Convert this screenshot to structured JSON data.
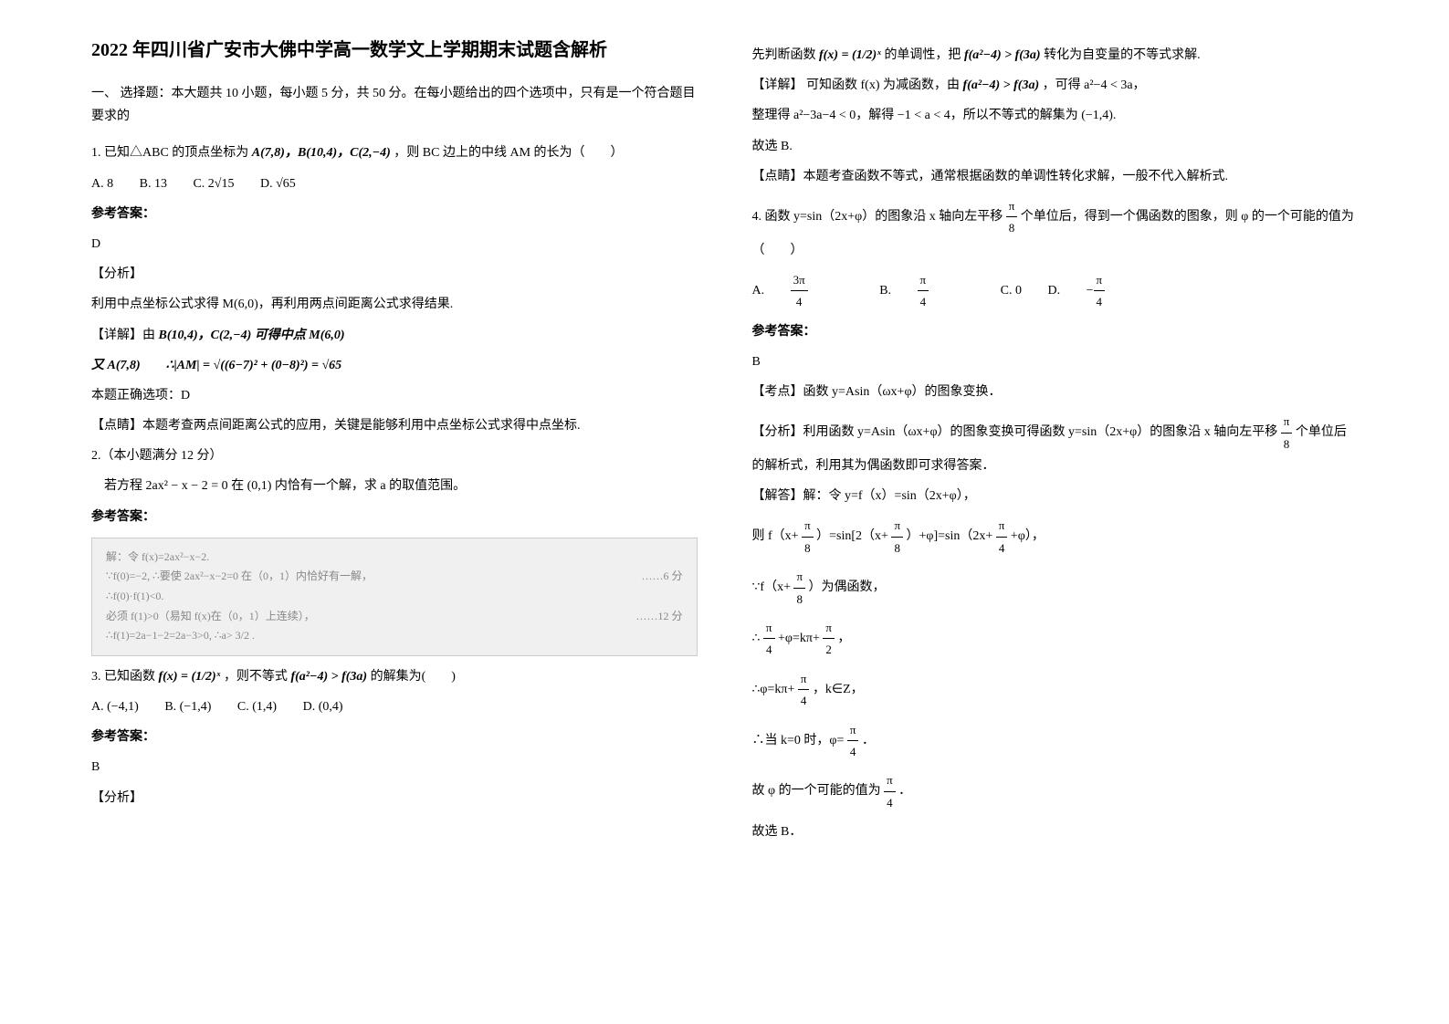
{
  "title": "2022 年四川省广安市大佛中学高一数学文上学期期末试题含解析",
  "section1_header": "一、 选择题：本大题共 10 小题，每小题 5 分，共 50 分。在每小题给出的四个选项中，只有是一个符合题目要求的",
  "q1": {
    "stem_prefix": "1. 已知△ABC 的顶点坐标为",
    "points": "A(7,8)，B(10,4)，C(2,−4)",
    "stem_suffix": "，则 BC 边上的中线 AM 的长为（　　）",
    "opt_a": "A. 8",
    "opt_b": "B. 13",
    "opt_c": "C. 2√15",
    "opt_d": "D. √65",
    "answer_label": "参考答案：",
    "answer": "D",
    "analysis_label": "【分析】",
    "analysis_text": "利用中点坐标公式求得 M(6,0)，再利用两点间距离公式求得结果.",
    "detail_label": "【详解】由",
    "detail_mid": "B(10,4)，C(2,−4) 可得中点 M(6,0)",
    "detail_line2_a": "又 A(7,8)",
    "detail_line2_b": "∴|AM| = √((6−7)² + (0−8)²) = √65",
    "correct": "本题正确选项：D",
    "dianjing_label": "【点睛】",
    "dianjing_text": "本题考查两点间距离公式的应用，关键是能够利用中点坐标公式求得中点坐标."
  },
  "q2": {
    "stem": "2.（本小题满分 12 分）",
    "body": "若方程 2ax² − x − 2 = 0 在 (0,1) 内恰有一个解，求 a 的取值范围。",
    "answer_label": "参考答案：",
    "box_l1": "解：令 f(x)=2ax²−x−2.",
    "box_l2": "∵f(0)=−2, ∴要使 2ax²−x−2=0 在（0，1）内恰好有一解，",
    "box_l3": "∴f(0)·f(1)<0.",
    "box_l4": "必须 f(1)>0（易知 f(x)在（0，1）上连续），",
    "box_l5": "∴f(1)=2a−1−2=2a−3>0, ∴a> 3/2 .",
    "box_r1": "……6 分",
    "box_r2": "……12 分"
  },
  "q3": {
    "stem_prefix": "3. 已知函数",
    "formula": "f(x) = (1/2)ˣ",
    "stem_mid": "，则不等式",
    "ineq": "f(a²−4) > f(3a)",
    "stem_suffix": " 的解集为(　　)",
    "opt_a": "A. (−4,1)",
    "opt_b": "B. (−1,4)",
    "opt_c": "C. (1,4)",
    "opt_d": "D. (0,4)",
    "answer_label": "参考答案：",
    "answer": "B",
    "analysis_label": "【分析】"
  },
  "col2": {
    "line1_a": "先判断函数",
    "line1_b": "f(x) = (1/2)ˣ",
    "line1_c": " 的单调性，把",
    "line1_d": "f(a²−4) > f(3a)",
    "line1_e": " 转化为自变量的不等式求解.",
    "detail_label": "【详解】",
    "detail_a": "可知函数 f(x) 为减函数，由",
    "detail_b": "f(a²−4) > f(3a)",
    "detail_c": "，可得 a²−4 < 3a，",
    "line3": "整理得 a²−3a−4 < 0，解得 −1 < a < 4，所以不等式的解集为 (−1,4).",
    "line4": "故选 B.",
    "dianjing": "【点睛】本题考查函数不等式，通常根据函数的单调性转化求解，一般不代入解析式."
  },
  "q4": {
    "stem_a": "4. 函数 y=sin（2x+φ）的图象沿 x 轴向左平移 ",
    "pi8": "π/8",
    "stem_b": " 个单位后，得到一个偶函数的图象，则 φ 的一个可能的值为（　　）",
    "opt_a_pre": "A. ",
    "opt_a_val": "3π/4",
    "opt_b_pre": "B. ",
    "opt_b_val": "π/4",
    "opt_c": "C. 0",
    "opt_d_pre": "D. ",
    "opt_d_val": "−π/4",
    "answer_label": "参考答案：",
    "answer": "B",
    "kaodian": "【考点】函数 y=Asin（ωx+φ）的图象变换．",
    "fenxi_a": "【分析】利用函数 y=Asin（ωx+φ）的图象变换可得函数 y=sin（2x+φ）的图象沿 x 轴向左平移 ",
    "fenxi_b": "个单位后的解析式，利用其为偶函数即可求得答案．",
    "jieda": "【解答】解：令 y=f（x）=sin（2x+φ），",
    "sol_l1_a": "则 f（x+",
    "sol_l1_b": "）=sin[2（x+",
    "sol_l1_c": "）+φ]=sin（2x+",
    "sol_l1_d": "+φ），",
    "sol_l2_a": "∵f（x+",
    "sol_l2_b": "）为偶函数，",
    "sol_l3_a": "∴",
    "sol_l3_b": "+φ=kπ+",
    "sol_l3_c": "，",
    "sol_l4_a": "∴φ=kπ+",
    "sol_l4_b": "，k∈Z，",
    "sol_l5_a": "∴当 k=0 时，φ=",
    "sol_l5_b": "．",
    "sol_l6_a": "故 φ 的一个可能的值为",
    "sol_l6_b": "．",
    "sol_l7": "故选 B．"
  }
}
